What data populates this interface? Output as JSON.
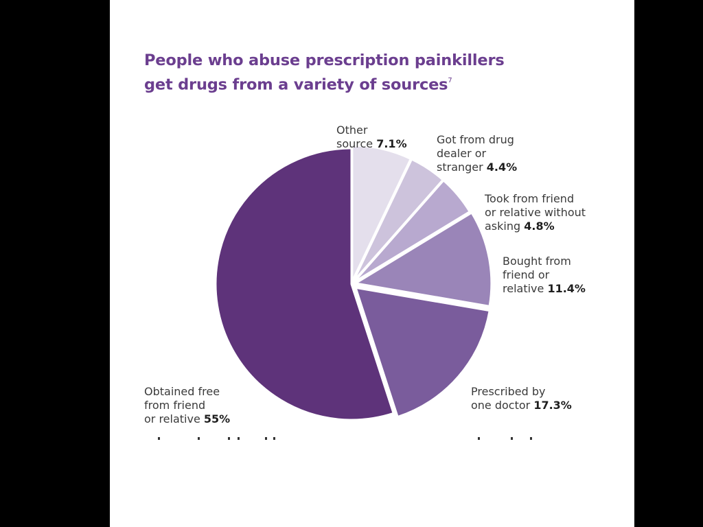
{
  "title": {
    "line1": "People who abuse prescription painkillers",
    "line2": "get drugs from a variety of sources",
    "footnote": "7"
  },
  "colors": {
    "background": "#000000",
    "panel": "#ffffff",
    "title": "#6b3e8f",
    "slice_borders": "#ffffff"
  },
  "chart_data": {
    "type": "pie",
    "title": "People who abuse prescription painkillers get drugs from a variety of sources",
    "start": "12 o'clock, clockwise",
    "slices": [
      {
        "label": "Other\nsource ",
        "value": 7.1,
        "value_text": "7.1%",
        "color": "#e4dfec"
      },
      {
        "label": "Got from drug\ndealer or\nstranger  ",
        "value": 4.4,
        "value_text": "4.4%",
        "color": "#cdc3dc"
      },
      {
        "label": "Took from friend\nor relative without\nasking ",
        "value": 4.8,
        "value_text": "4.8%",
        "color": "#b8a9cf"
      },
      {
        "label": "Bought from\nfriend or\nrelative ",
        "value": 11.4,
        "value_text": "11.4%",
        "color": "#9a85b8"
      },
      {
        "label": "Prescribed by\none doctor ",
        "value": 17.3,
        "value_text": "17.3%",
        "color": "#7a5c9c"
      },
      {
        "label": "Obtained free\nfrom friend\nor relative ",
        "value": 55,
        "value_text": "55%",
        "color": "#5e337a"
      }
    ]
  }
}
